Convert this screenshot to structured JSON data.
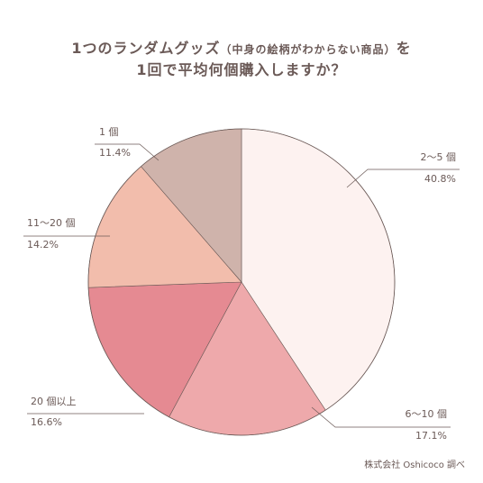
{
  "title": {
    "line1_main": "1つのランダムグッズ",
    "line1_paren": "（中身の絵柄がわからない商品）",
    "line1_end": "を",
    "line2": "1回で平均何個購入しますか？"
  },
  "source": "株式会社 Oshicoco 調べ",
  "chart_data": {
    "type": "pie",
    "title": "1つのランダムグッズ（中身の絵柄がわからない商品）を 1回で平均何個購入しますか？",
    "start": "12 o'clock, clockwise",
    "slices": [
      {
        "label": "2〜5 個",
        "percent_label": "40.8%",
        "value": 40.8,
        "color": "#fdf2f0"
      },
      {
        "label": "6〜10 個",
        "percent_label": "17.1%",
        "value": 17.1,
        "color": "#eea9ab"
      },
      {
        "label": "20 個以上",
        "percent_label": "16.6%",
        "value": 16.6,
        "color": "#e58a92"
      },
      {
        "label": "11〜20 個",
        "percent_label": "14.2%",
        "value": 14.2,
        "color": "#f2bdac"
      },
      {
        "label": "1 個",
        "percent_label": "11.4%",
        "value": 11.4,
        "color": "#cfb3ab"
      }
    ],
    "stroke_color": "#6b5a57"
  }
}
